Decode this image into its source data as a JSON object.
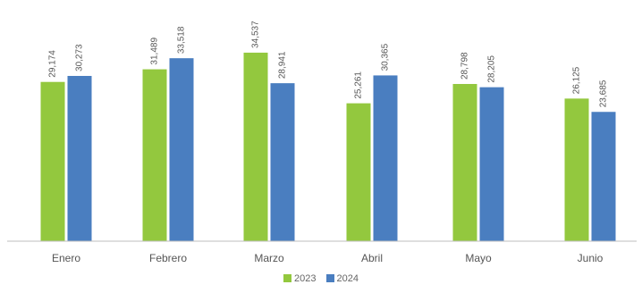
{
  "chart_data": {
    "type": "bar",
    "categories": [
      "Enero",
      "Febrero",
      "Marzo",
      "Abril",
      "Mayo",
      "Junio"
    ],
    "series": [
      {
        "name": "2023",
        "color": "#93c83e",
        "values": [
          29174,
          31489,
          34537,
          25261,
          28798,
          26125
        ],
        "labels": [
          "29,174",
          "31,489",
          "34,537",
          "25,261",
          "28,798",
          "26,125"
        ]
      },
      {
        "name": "2024",
        "color": "#4a7ec0",
        "values": [
          30273,
          33518,
          28941,
          30365,
          28205,
          23685
        ],
        "labels": [
          "30,273",
          "33,518",
          "28,941",
          "30,365",
          "28,205",
          "23,685"
        ]
      }
    ],
    "title": "",
    "xlabel": "",
    "ylabel": "",
    "ylim": [
      0,
      36000
    ],
    "grid": false,
    "legend_position": "bottom-center"
  }
}
